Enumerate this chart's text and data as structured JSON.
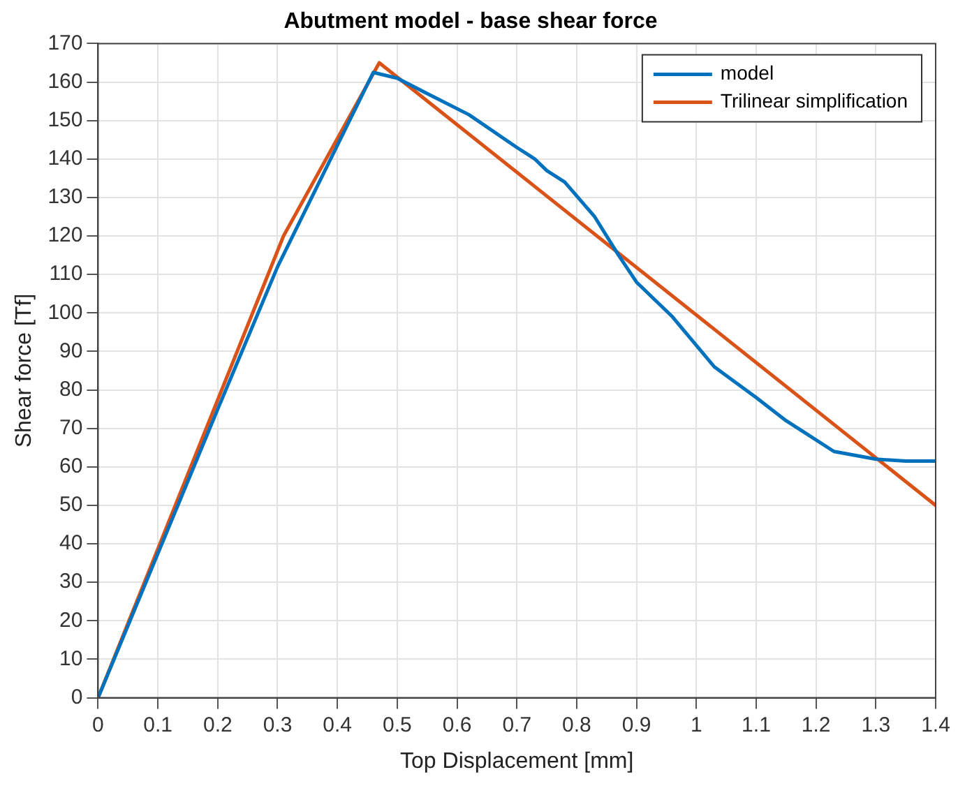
{
  "chart_data": {
    "type": "line",
    "title": "Abutment model - base shear force",
    "xlabel": "Top Displacement [mm]",
    "ylabel": "Shear force [Tf]",
    "xlim": [
      0,
      1.4
    ],
    "xticks": [
      0,
      0.1,
      0.2,
      0.3,
      0.4,
      0.5,
      0.6,
      0.7,
      0.8,
      0.9,
      1,
      1.1,
      1.2,
      1.3,
      1.4
    ],
    "ylim": [
      0,
      170
    ],
    "yticks": [
      0,
      10,
      20,
      30,
      40,
      50,
      60,
      70,
      80,
      90,
      100,
      110,
      120,
      130,
      140,
      150,
      160,
      170
    ],
    "grid": true,
    "legend": "top right",
    "marker": "none",
    "line_style": "solid",
    "series": [
      {
        "name": "model",
        "color": "#0072bd",
        "x": [
          0,
          0.2,
          0.3,
          0.46,
          0.5,
          0.55,
          0.62,
          0.7,
          0.73,
          0.75,
          0.78,
          0.83,
          0.87,
          0.9,
          0.96,
          1.03,
          1.1,
          1.15,
          1.18,
          1.23,
          1.3,
          1.35,
          1.4
        ],
        "values": [
          0,
          75,
          112,
          162.5,
          161,
          157,
          151.5,
          143,
          140,
          137,
          134,
          125,
          115,
          108,
          99,
          86,
          78,
          72,
          69,
          64,
          62,
          61.5,
          61.5
        ]
      },
      {
        "name": "Trilinear simplification",
        "color": "#d95319",
        "x": [
          0,
          0.31,
          0.47,
          1.4
        ],
        "values": [
          0,
          120,
          165,
          50
        ]
      }
    ]
  }
}
